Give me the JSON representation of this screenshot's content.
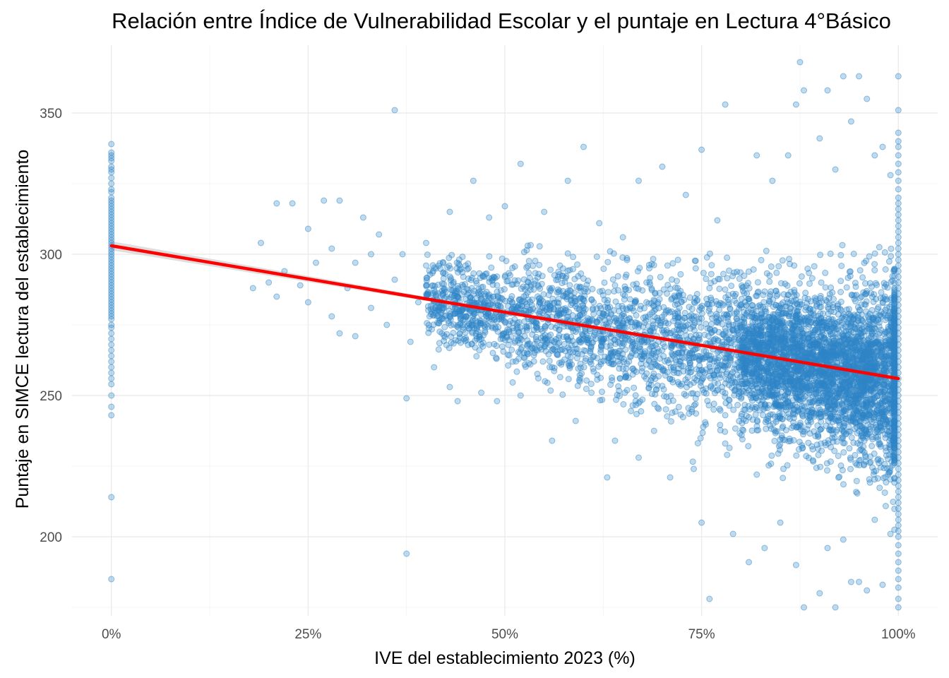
{
  "chart_data": {
    "type": "scatter",
    "title": "Relación entre Índice de Vulnerabilidad Escolar y el puntaje en Lectura 4°Básico",
    "xlabel": "IVE del establecimiento 2023 (%)",
    "ylabel": "Puntaje en SIMCE lectura del establecimiento",
    "xlim": [
      -0.05,
      1.05
    ],
    "ylim": [
      172,
      374
    ],
    "x_ticks": [
      0,
      0.25,
      0.5,
      0.75,
      1
    ],
    "x_tick_labels": [
      "0%",
      "25%",
      "50%",
      "75%",
      "100%"
    ],
    "y_ticks": [
      200,
      250,
      300,
      350
    ],
    "y_tick_labels": [
      "200",
      "250",
      "300",
      "350"
    ],
    "grid": true,
    "legend": "none",
    "point_color": "#2e86c8",
    "fit_color": "#ff0000",
    "band_color": "#c8c8c8",
    "fit_line": {
      "x": [
        0,
        1
      ],
      "y": [
        303,
        256
      ]
    },
    "points_x0": [
      339,
      336,
      335,
      334,
      333,
      331,
      330,
      329,
      327,
      325,
      323,
      322,
      320,
      319,
      318,
      317,
      316,
      315,
      314,
      313,
      312,
      311,
      310,
      309,
      308,
      307,
      306,
      305,
      304,
      303,
      302,
      301,
      300,
      299,
      298,
      297,
      296,
      295,
      294,
      293,
      292,
      291,
      290,
      289,
      288,
      287,
      286,
      285,
      284,
      283,
      282,
      281,
      280,
      279,
      278,
      277,
      275,
      274,
      272,
      270,
      268,
      266,
      264,
      262,
      260,
      258,
      256,
      254,
      250,
      246,
      243,
      214,
      185
    ],
    "points_x100": [
      363,
      351,
      343,
      340,
      338,
      335,
      332,
      329,
      326,
      323,
      320,
      318,
      316,
      314,
      312,
      310,
      308,
      306,
      304,
      302,
      300,
      298,
      296,
      294,
      292,
      290,
      288,
      286,
      284,
      282,
      280,
      278,
      276,
      274,
      272,
      270,
      268,
      266,
      264,
      262,
      260,
      258,
      256,
      254,
      252,
      250,
      248,
      246,
      244,
      242,
      240,
      238,
      236,
      234,
      232,
      230,
      228,
      226,
      224,
      222,
      220,
      218,
      216,
      214,
      212,
      210,
      208,
      206,
      204,
      202,
      200,
      197,
      194,
      191,
      188,
      185,
      182,
      178,
      175,
      171
    ],
    "points": [
      [
        0.36,
        351
      ],
      [
        0.375,
        249
      ],
      [
        0.375,
        194
      ],
      [
        0.18,
        288
      ],
      [
        0.19,
        304
      ],
      [
        0.2,
        290
      ],
      [
        0.21,
        318
      ],
      [
        0.21,
        285
      ],
      [
        0.22,
        294
      ],
      [
        0.23,
        318
      ],
      [
        0.24,
        289
      ],
      [
        0.25,
        283
      ],
      [
        0.25,
        309
      ],
      [
        0.26,
        297
      ],
      [
        0.27,
        319
      ],
      [
        0.28,
        302
      ],
      [
        0.28,
        278
      ],
      [
        0.29,
        319
      ],
      [
        0.29,
        272
      ],
      [
        0.3,
        288
      ],
      [
        0.31,
        297
      ],
      [
        0.31,
        271
      ],
      [
        0.32,
        313
      ],
      [
        0.33,
        300
      ],
      [
        0.33,
        281
      ],
      [
        0.34,
        307
      ],
      [
        0.35,
        275
      ],
      [
        0.36,
        291
      ],
      [
        0.37,
        300
      ],
      [
        0.38,
        269
      ],
      [
        0.39,
        283
      ],
      [
        0.4,
        296
      ],
      [
        0.4,
        304
      ],
      [
        0.41,
        260
      ],
      [
        0.42,
        287
      ],
      [
        0.43,
        253
      ],
      [
        0.43,
        315
      ],
      [
        0.44,
        279
      ],
      [
        0.44,
        248
      ],
      [
        0.45,
        296
      ],
      [
        0.46,
        326
      ],
      [
        0.47,
        270
      ],
      [
        0.47,
        251
      ],
      [
        0.48,
        313
      ],
      [
        0.49,
        289
      ],
      [
        0.49,
        248
      ],
      [
        0.5,
        317
      ],
      [
        0.51,
        262
      ],
      [
        0.52,
        332
      ],
      [
        0.52,
        250
      ],
      [
        0.53,
        290
      ],
      [
        0.54,
        274
      ],
      [
        0.55,
        315
      ],
      [
        0.56,
        260
      ],
      [
        0.56,
        234
      ],
      [
        0.57,
        296
      ],
      [
        0.58,
        326
      ],
      [
        0.59,
        241
      ],
      [
        0.6,
        338
      ],
      [
        0.6,
        284
      ],
      [
        0.61,
        251
      ],
      [
        0.62,
        311
      ],
      [
        0.63,
        221
      ],
      [
        0.63,
        279
      ],
      [
        0.64,
        234
      ],
      [
        0.65,
        306
      ],
      [
        0.66,
        264
      ],
      [
        0.67,
        326
      ],
      [
        0.67,
        228
      ],
      [
        0.68,
        290
      ],
      [
        0.69,
        247
      ],
      [
        0.7,
        331
      ],
      [
        0.7,
        273
      ],
      [
        0.71,
        221
      ],
      [
        0.72,
        298
      ],
      [
        0.73,
        250
      ],
      [
        0.73,
        321
      ],
      [
        0.74,
        224
      ],
      [
        0.75,
        337
      ],
      [
        0.75,
        205
      ],
      [
        0.76,
        178
      ],
      [
        0.76,
        261
      ],
      [
        0.77,
        312
      ],
      [
        0.78,
        233
      ],
      [
        0.78,
        353
      ],
      [
        0.79,
        201
      ],
      [
        0.8,
        282
      ],
      [
        0.81,
        191
      ],
      [
        0.82,
        335
      ],
      [
        0.82,
        222
      ],
      [
        0.83,
        196
      ],
      [
        0.84,
        326
      ],
      [
        0.85,
        205
      ],
      [
        0.86,
        268
      ],
      [
        0.86,
        335
      ],
      [
        0.87,
        190
      ],
      [
        0.87,
        353
      ],
      [
        0.875,
        368
      ],
      [
        0.88,
        175
      ],
      [
        0.88,
        358
      ],
      [
        0.89,
        232
      ],
      [
        0.9,
        180
      ],
      [
        0.9,
        341
      ],
      [
        0.91,
        196
      ],
      [
        0.91,
        358
      ],
      [
        0.92,
        175
      ],
      [
        0.92,
        330
      ],
      [
        0.93,
        363
      ],
      [
        0.93,
        199
      ],
      [
        0.94,
        184
      ],
      [
        0.94,
        347
      ],
      [
        0.95,
        363
      ],
      [
        0.95,
        184
      ],
      [
        0.96,
        355
      ],
      [
        0.96,
        181
      ],
      [
        0.97,
        335
      ],
      [
        0.97,
        206
      ],
      [
        0.98,
        338
      ],
      [
        0.98,
        183
      ],
      [
        0.99,
        328
      ],
      [
        0.99,
        201
      ],
      [
        0.42,
        272
      ],
      [
        0.44,
        285
      ],
      [
        0.46,
        279
      ],
      [
        0.48,
        268
      ],
      [
        0.5,
        292
      ],
      [
        0.52,
        284
      ],
      [
        0.54,
        276
      ],
      [
        0.56,
        288
      ],
      [
        0.58,
        270
      ],
      [
        0.6,
        281
      ],
      [
        0.62,
        272
      ],
      [
        0.64,
        289
      ],
      [
        0.66,
        276
      ],
      [
        0.68,
        283
      ],
      [
        0.7,
        266
      ],
      [
        0.72,
        279
      ],
      [
        0.74,
        270
      ],
      [
        0.76,
        288
      ],
      [
        0.78,
        262
      ],
      [
        0.8,
        274
      ],
      [
        0.82,
        255
      ],
      [
        0.84,
        268
      ],
      [
        0.86,
        248
      ],
      [
        0.88,
        262
      ],
      [
        0.9,
        252
      ],
      [
        0.92,
        265
      ],
      [
        0.94,
        246
      ],
      [
        0.96,
        258
      ],
      [
        0.98,
        241
      ]
    ]
  }
}
